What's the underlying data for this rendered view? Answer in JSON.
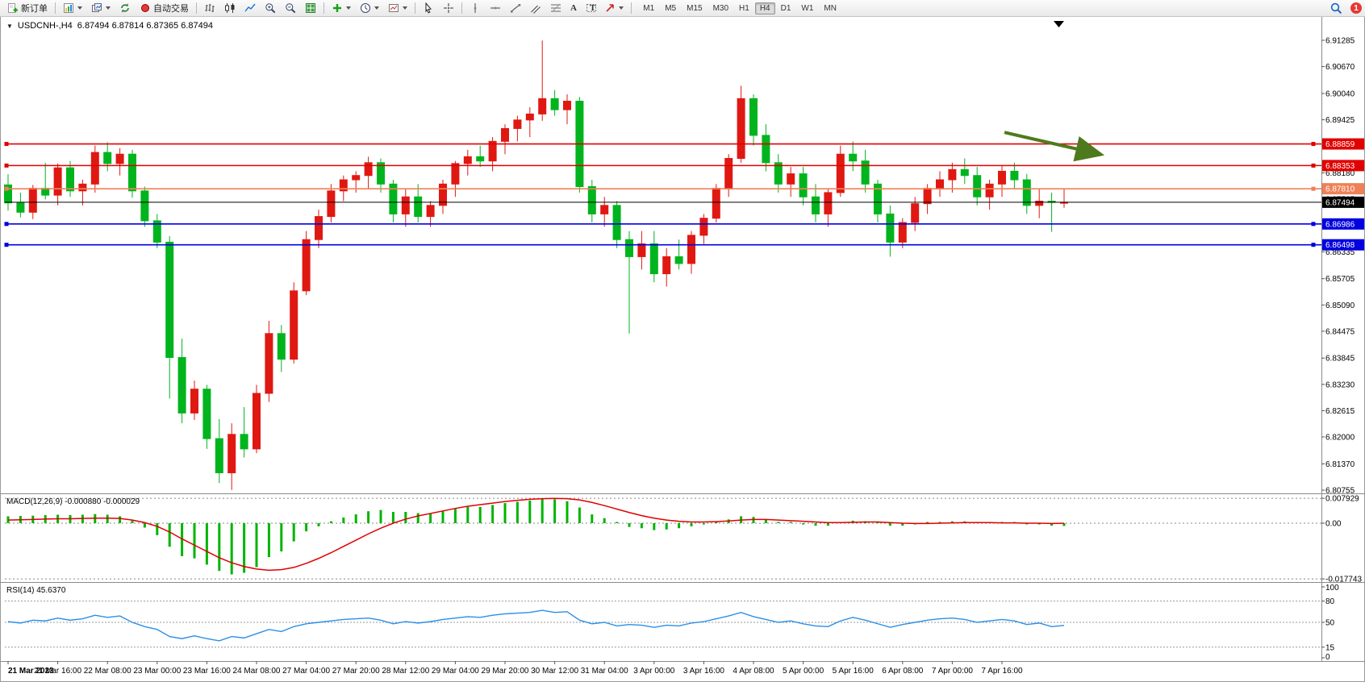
{
  "toolbar": {
    "new_order": "新订单",
    "auto_trading": "自动交易",
    "timeframes": [
      "M1",
      "M5",
      "M15",
      "M30",
      "H1",
      "H4",
      "D1",
      "W1",
      "MN"
    ],
    "active_timeframe": "H4",
    "notification_count": "1"
  },
  "icons": {
    "expander": "▼",
    "text_tool": "A",
    "label_tool": "T"
  },
  "chart_header": {
    "symbol": "USDCNH-,H4",
    "ohlc": "6.87494 6.87814 6.87365 6.87494"
  },
  "colors": {
    "bull": "#e01812",
    "bear": "#00b41e",
    "macd_hist": "#00b400",
    "macd_signal": "#e00000",
    "rsi": "#2a8fe8",
    "level_red": "#e00000",
    "level_orange": "#ef8157",
    "level_blue": "#0000e0",
    "current_price": "#000000",
    "arrow": "#4e7a1d"
  },
  "chart_data": {
    "type": "candlestick",
    "symbol": "USDCNH-",
    "timeframe": "H4",
    "title": "USDCNH-,H4 6.87494 6.87814 6.87365 6.87494",
    "price_axis": [
      "6.91285",
      "6.90670",
      "6.90040",
      "6.89425",
      "6.88810",
      "6.88180",
      "6.87565",
      "6.86950",
      "6.86335",
      "6.85705",
      "6.85090",
      "6.84475",
      "6.83845",
      "6.83230",
      "6.82615",
      "6.82000",
      "6.81370",
      "6.80755"
    ],
    "time_axis": [
      "21 Mar 2023",
      "21 Mar 16:00",
      "22 Mar 08:00",
      "23 Mar 00:00",
      "23 Mar 16:00",
      "24 Mar 08:00",
      "27 Mar 04:00",
      "27 Mar 20:00",
      "28 Mar 12:00",
      "29 Mar 04:00",
      "29 Mar 20:00",
      "30 Mar 12:00",
      "31 Mar 04:00",
      "3 Apr 00:00",
      "3 Apr 16:00",
      "4 Apr 08:00",
      "5 Apr 00:00",
      "5 Apr 16:00",
      "6 Apr 08:00",
      "7 Apr 00:00",
      "7 Apr 16:00"
    ],
    "candles": [
      [
        6.879,
        6.8815,
        6.873,
        6.8748
      ],
      [
        6.8748,
        6.8772,
        6.8714,
        6.8726
      ],
      [
        6.8726,
        6.879,
        6.871,
        6.8782
      ],
      [
        6.8782,
        6.8842,
        6.8756,
        6.8766
      ],
      [
        6.8766,
        6.884,
        6.8742,
        6.883
      ],
      [
        6.883,
        6.8846,
        6.8762,
        6.8776
      ],
      [
        6.8776,
        6.8802,
        6.8742,
        6.8792
      ],
      [
        6.8792,
        6.8882,
        6.8772,
        6.8866
      ],
      [
        6.8866,
        6.889,
        6.8822,
        6.884
      ],
      [
        6.884,
        6.8876,
        6.8812,
        6.8862
      ],
      [
        6.8862,
        6.8872,
        6.876,
        6.8776
      ],
      [
        6.8776,
        6.8786,
        6.8692,
        6.8706
      ],
      [
        6.8706,
        6.8722,
        6.8642,
        6.8656
      ],
      [
        6.8656,
        6.867,
        6.829,
        6.8386
      ],
      [
        6.8386,
        6.843,
        6.8232,
        6.8256
      ],
      [
        6.8256,
        6.8332,
        6.824,
        6.8312
      ],
      [
        6.8312,
        6.8322,
        6.8172,
        6.8196
      ],
      [
        6.8196,
        6.8242,
        6.8092,
        6.8116
      ],
      [
        6.8116,
        6.8232,
        6.8076,
        6.8206
      ],
      [
        6.8206,
        6.827,
        6.8152,
        6.8172
      ],
      [
        6.8172,
        6.8322,
        6.8162,
        6.8302
      ],
      [
        6.8302,
        6.8472,
        6.8282,
        6.8442
      ],
      [
        6.8442,
        6.8462,
        6.8352,
        6.8382
      ],
      [
        6.8382,
        6.8562,
        6.8372,
        6.8542
      ],
      [
        6.8542,
        6.8682,
        6.8532,
        6.8662
      ],
      [
        6.8662,
        6.8732,
        6.8642,
        6.8716
      ],
      [
        6.8716,
        6.8792,
        6.8702,
        6.8776
      ],
      [
        6.8776,
        6.8812,
        6.8752,
        6.8802
      ],
      [
        6.8802,
        6.8822,
        6.8772,
        6.8812
      ],
      [
        6.8812,
        6.8856,
        6.8782,
        6.8842
      ],
      [
        6.8842,
        6.8852,
        6.8772,
        6.8792
      ],
      [
        6.8792,
        6.8802,
        6.8702,
        6.8722
      ],
      [
        6.8722,
        6.8782,
        6.8692,
        6.8762
      ],
      [
        6.8762,
        6.8792,
        6.8702,
        6.8716
      ],
      [
        6.8716,
        6.8752,
        6.8692,
        6.8742
      ],
      [
        6.8742,
        6.8802,
        6.8722,
        6.8792
      ],
      [
        6.8792,
        6.8846,
        6.8762,
        6.884
      ],
      [
        6.884,
        6.8872,
        6.8812,
        6.8856
      ],
      [
        6.8856,
        6.8882,
        6.8832,
        6.8846
      ],
      [
        6.8846,
        6.8902,
        6.8822,
        6.8892
      ],
      [
        6.8892,
        6.8932,
        6.8862,
        6.8922
      ],
      [
        6.8922,
        6.8952,
        6.8892,
        6.8942
      ],
      [
        6.8942,
        6.8972,
        6.8902,
        6.8956
      ],
      [
        6.8956,
        6.9128,
        6.894,
        6.8992
      ],
      [
        6.8992,
        6.9012,
        6.8952,
        6.8966
      ],
      [
        6.8966,
        6.9002,
        6.8932,
        6.8986
      ],
      [
        6.8986,
        6.8996,
        6.8772,
        6.8786
      ],
      [
        6.8786,
        6.8802,
        6.8702,
        6.8722
      ],
      [
        6.8722,
        6.8762,
        6.8692,
        6.8742
      ],
      [
        6.8742,
        6.8752,
        6.8642,
        6.8662
      ],
      [
        6.8662,
        6.8682,
        6.8442,
        6.8622
      ],
      [
        6.8622,
        6.8682,
        6.8592,
        6.8652
      ],
      [
        6.8652,
        6.8682,
        6.8562,
        6.8582
      ],
      [
        6.8582,
        6.8642,
        6.8552,
        6.8622
      ],
      [
        6.8622,
        6.8662,
        6.8592,
        6.8606
      ],
      [
        6.8606,
        6.8682,
        6.8582,
        6.8672
      ],
      [
        6.8672,
        6.8722,
        6.8652,
        6.8712
      ],
      [
        6.8712,
        6.8792,
        6.8702,
        6.8782
      ],
      [
        6.8782,
        6.8862,
        6.8762,
        6.8852
      ],
      [
        6.8852,
        6.9022,
        6.8842,
        6.8992
      ],
      [
        6.8992,
        6.9002,
        6.8882,
        6.8906
      ],
      [
        6.8906,
        6.8932,
        6.8822,
        6.8842
      ],
      [
        6.8842,
        6.8862,
        6.8772,
        6.8792
      ],
      [
        6.8792,
        6.8832,
        6.8762,
        6.8816
      ],
      [
        6.8816,
        6.8832,
        6.8742,
        6.8762
      ],
      [
        6.8762,
        6.8792,
        6.8702,
        6.8722
      ],
      [
        6.8722,
        6.8782,
        6.8692,
        6.8772
      ],
      [
        6.8772,
        6.8882,
        6.8762,
        6.8862
      ],
      [
        6.8862,
        6.8892,
        6.8822,
        6.8846
      ],
      [
        6.8846,
        6.8872,
        6.8772,
        6.8792
      ],
      [
        6.8792,
        6.8802,
        6.8702,
        6.8722
      ],
      [
        6.8722,
        6.8742,
        6.8622,
        6.8656
      ],
      [
        6.8656,
        6.8712,
        6.8642,
        6.8702
      ],
      [
        6.8702,
        6.8762,
        6.8682,
        6.8746
      ],
      [
        6.8746,
        6.8792,
        6.8722,
        6.8782
      ],
      [
        6.8782,
        6.8822,
        6.8762,
        6.8802
      ],
      [
        6.8802,
        6.8842,
        6.8772,
        6.8826
      ],
      [
        6.8826,
        6.8852,
        6.8792,
        6.8812
      ],
      [
        6.8812,
        6.8832,
        6.8742,
        6.8762
      ],
      [
        6.8762,
        6.8802,
        6.8732,
        6.8792
      ],
      [
        6.8792,
        6.8836,
        6.8762,
        6.8822
      ],
      [
        6.8822,
        6.8842,
        6.8782,
        6.8802
      ],
      [
        6.8802,
        6.8816,
        6.8722,
        6.8742
      ],
      [
        6.8742,
        6.8782,
        6.8712,
        6.8752
      ],
      [
        6.8752,
        6.8772,
        6.868,
        6.8749
      ],
      [
        6.87494,
        6.87814,
        6.87365,
        6.87494
      ]
    ],
    "levels": [
      {
        "price": 6.88859,
        "label": "6.88859",
        "color": "#e00000"
      },
      {
        "price": 6.88353,
        "label": "6.88353",
        "color": "#e00000"
      },
      {
        "price": 6.8781,
        "label": "6.87810",
        "color": "#ef8157"
      },
      {
        "price": 6.87494,
        "label": "6.87494",
        "color": "#000000",
        "is_current": true
      },
      {
        "price": 6.86986,
        "label": "6.86986",
        "color": "#0000e0"
      },
      {
        "price": 6.86498,
        "label": "6.86498",
        "color": "#0000e0"
      }
    ],
    "current_price": 6.87494,
    "macd": {
      "title": "MACD(12,26,9) -0.000880 -0.000029",
      "axis": [
        "0.007929",
        "0.00",
        "-0.017743"
      ],
      "hist": [
        0.0022,
        0.0023,
        0.0024,
        0.0026,
        0.0027,
        0.0026,
        0.0027,
        0.0029,
        0.0027,
        0.0022,
        0.0008,
        -0.0014,
        -0.0038,
        -0.0075,
        -0.0105,
        -0.0112,
        -0.0132,
        -0.0152,
        -0.0163,
        -0.0158,
        -0.014,
        -0.0108,
        -0.009,
        -0.0058,
        -0.0026,
        -0.001,
        0.0006,
        0.0018,
        0.0028,
        0.0038,
        0.0042,
        0.0036,
        0.0036,
        0.0032,
        0.0032,
        0.0038,
        0.0046,
        0.0052,
        0.0052,
        0.0058,
        0.0064,
        0.0068,
        0.0072,
        0.0079,
        0.0076,
        0.007,
        0.005,
        0.0028,
        0.0016,
        0.0002,
        -0.0012,
        -0.0016,
        -0.0022,
        -0.002,
        -0.0016,
        -0.001,
        -0.0004,
        0.0004,
        0.0012,
        0.0022,
        0.002,
        0.0012,
        0.0004,
        0.0002,
        -0.0004,
        -0.0008,
        -0.0008,
        0.0002,
        0.0008,
        0.0006,
        0.0,
        -0.0008,
        -0.0008,
        -0.0004,
        0.0,
        0.0004,
        0.0006,
        0.0006,
        0.0004,
        0.0002,
        0.0004,
        0.0002,
        -0.0002,
        -0.0004,
        -0.0008,
        -0.00088
      ],
      "signal": [
        0.001,
        0.0011,
        0.0012,
        0.0013,
        0.0014,
        0.0014,
        0.0015,
        0.0016,
        0.0016,
        0.0015,
        0.001,
        0.0002,
        -0.001,
        -0.0028,
        -0.005,
        -0.007,
        -0.009,
        -0.011,
        -0.0126,
        -0.0138,
        -0.0146,
        -0.015,
        -0.0148,
        -0.0141,
        -0.0128,
        -0.0112,
        -0.0094,
        -0.0074,
        -0.0054,
        -0.0034,
        -0.0016,
        0.0,
        0.0013,
        0.0023,
        0.0031,
        0.0039,
        0.0047,
        0.0054,
        0.0059,
        0.0064,
        0.0069,
        0.0073,
        0.0076,
        0.0078,
        0.0079,
        0.0078,
        0.0074,
        0.0066,
        0.0056,
        0.0045,
        0.0034,
        0.0024,
        0.0016,
        0.001,
        0.0006,
        0.0004,
        0.0004,
        0.0005,
        0.0007,
        0.001,
        0.0012,
        0.0012,
        0.001,
        0.0008,
        0.0006,
        0.0004,
        0.0002,
        0.0002,
        0.0003,
        0.0004,
        0.0004,
        0.0002,
        0.0,
        -0.0001,
        -0.0001,
        0.0,
        0.0001,
        0.0002,
        0.0002,
        0.0002,
        0.0001,
        0.0001,
        0.0,
        0.0,
        -0.0001,
        -2.9e-05
      ]
    },
    "rsi": {
      "title": "RSI(14) 45.6370",
      "axis": [
        "100",
        "80",
        "50",
        "15",
        "0"
      ],
      "levels": [
        80,
        50,
        15
      ],
      "values": [
        51,
        49,
        53,
        52,
        56,
        53,
        55,
        60,
        57,
        59,
        50,
        44,
        40,
        30,
        27,
        31,
        27,
        24,
        30,
        28,
        34,
        40,
        37,
        44,
        48,
        50,
        52,
        54,
        55,
        56,
        53,
        48,
        51,
        49,
        51,
        54,
        56,
        58,
        57,
        60,
        62,
        63,
        64,
        67,
        64,
        65,
        53,
        48,
        50,
        45,
        47,
        46,
        43,
        46,
        45,
        49,
        51,
        55,
        59,
        64,
        58,
        54,
        50,
        52,
        48,
        45,
        44,
        52,
        57,
        53,
        48,
        43,
        47,
        50,
        53,
        55,
        56,
        54,
        50,
        52,
        54,
        52,
        47,
        49,
        44,
        45.637
      ]
    },
    "arrow": {
      "from_bar": 80.2,
      "from_price": 6.8913,
      "to_bar": 88,
      "to_price": 6.8861,
      "color": "#4e7a1d"
    }
  }
}
